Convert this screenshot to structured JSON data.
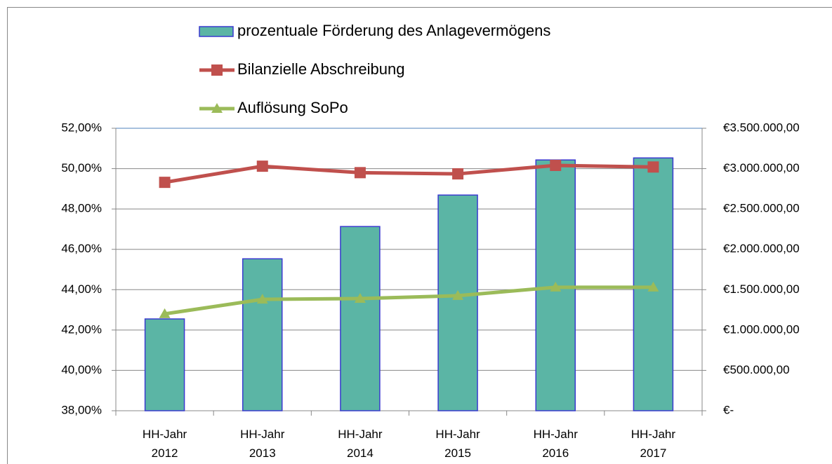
{
  "chart_data": {
    "type": "bar_line",
    "categories": [
      "HH-Jahr 2012",
      "HH-Jahr 2013",
      "HH-Jahr 2014",
      "HH-Jahr 2015",
      "HH-Jahr 2016",
      "HH-Jahr 2017"
    ],
    "series": [
      {
        "name": "prozentuale Förderung des Anlagevermögens",
        "type": "bar",
        "color": "#5bb5a5",
        "values": [
          42.55,
          45.53,
          47.13,
          48.69,
          50.43,
          50.53
        ]
      },
      {
        "name": "Bilanzielle Abschreibung",
        "type": "line",
        "axis": "y2",
        "color": "#c0504d",
        "values": [
          2830000,
          3030000,
          2950000,
          2935000,
          3040000,
          3020000
        ]
      },
      {
        "name": "Auflösung SoPo",
        "type": "line",
        "axis": "y2",
        "color": "#9bbb59",
        "values": [
          1200000,
          1380000,
          1390000,
          1425000,
          1530000,
          1530000
        ]
      }
    ],
    "ylim": [
      38,
      52
    ],
    "yticks": [
      {
        "value": 38,
        "label": "38,00%"
      },
      {
        "value": 40,
        "label": "40,00%"
      },
      {
        "value": 42,
        "label": "42,00%"
      },
      {
        "value": 44,
        "label": "44,00%"
      },
      {
        "value": 46,
        "label": "46,00%"
      },
      {
        "value": 48,
        "label": "48,00%"
      },
      {
        "value": 50,
        "label": "50,00%"
      },
      {
        "value": 52,
        "label": "52,00%"
      }
    ],
    "y2lim": [
      0,
      3500000
    ],
    "y2ticks": [
      {
        "value": 0,
        "label": "€-"
      },
      {
        "value": 500000,
        "label": "€500.000,00"
      },
      {
        "value": 1000000,
        "label": "€1.000.000,00"
      },
      {
        "value": 1500000,
        "label": "€1.500.000,00"
      },
      {
        "value": 2000000,
        "label": "€2.000.000,00"
      },
      {
        "value": 2500000,
        "label": "€2.500.000,00"
      },
      {
        "value": 3000000,
        "label": "€3.000.000,00"
      },
      {
        "value": 3500000,
        "label": "€3.500.000,00"
      }
    ],
    "grid": true
  }
}
